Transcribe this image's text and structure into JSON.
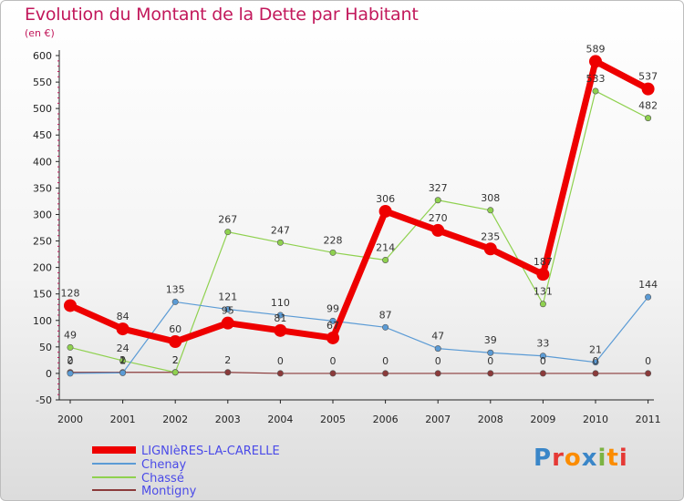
{
  "title": "Evolution du Montant de la Dette par Habitant",
  "unit": "(en €)",
  "logo": {
    "text": "Proxiti",
    "colors": [
      "#3a86c8",
      "#e53935",
      "#fb8c00",
      "#3a86c8",
      "#7cb342",
      "#fb8c00",
      "#e53935"
    ]
  },
  "chart_data": {
    "type": "line",
    "title": "Evolution du Montant de la Dette par Habitant",
    "ylabel": "(en €)",
    "xlabel": "",
    "ylim": [
      -50,
      600
    ],
    "yticks": [
      -50,
      0,
      50,
      100,
      150,
      200,
      250,
      300,
      350,
      400,
      450,
      500,
      550,
      600
    ],
    "x": [
      "2000",
      "2001",
      "2002",
      "2003",
      "2004",
      "2005",
      "2006",
      "2007",
      "2008",
      "2009",
      "2010",
      "2011"
    ],
    "grid": false,
    "legend": "bottom-left",
    "series": [
      {
        "name": "LIGNIèRES-LA-CARELLE",
        "color": "#ee0000",
        "width": 7,
        "values": [
          128,
          84,
          60,
          95,
          81,
          67,
          306,
          270,
          235,
          187,
          589,
          537
        ]
      },
      {
        "name": "Chenay",
        "color": "#5b9bd5",
        "width": 1.2,
        "values": [
          0,
          1,
          135,
          121,
          110,
          99,
          87,
          47,
          39,
          33,
          21,
          144
        ]
      },
      {
        "name": "Chassé",
        "color": "#8fd14f",
        "width": 1.2,
        "values": [
          49,
          24,
          2,
          267,
          247,
          228,
          214,
          327,
          308,
          131,
          533,
          482
        ]
      },
      {
        "name": "Montigny",
        "color": "#8b3a3a",
        "width": 1.2,
        "values": [
          2,
          2,
          2,
          2,
          0,
          0,
          0,
          0,
          0,
          0,
          0,
          0
        ]
      }
    ],
    "labels": [
      {
        "x": 0,
        "y": 128,
        "text": "128"
      },
      {
        "x": 1,
        "y": 84,
        "text": "84"
      },
      {
        "x": 2,
        "y": 60,
        "text": "60"
      },
      {
        "x": 3,
        "y": 95,
        "text": "95"
      },
      {
        "x": 4,
        "y": 81,
        "text": "81"
      },
      {
        "x": 5,
        "y": 67,
        "text": "67"
      },
      {
        "x": 6,
        "y": 306,
        "text": "306"
      },
      {
        "x": 7,
        "y": 270,
        "text": "270"
      },
      {
        "x": 8,
        "y": 235,
        "text": "235"
      },
      {
        "x": 9,
        "y": 187,
        "text": "187"
      },
      {
        "x": 10,
        "y": 589,
        "text": "589"
      },
      {
        "x": 11,
        "y": 537,
        "text": "537"
      },
      {
        "x": 0,
        "y": 0,
        "text": "0"
      },
      {
        "x": 1,
        "y": 1,
        "text": "1"
      },
      {
        "x": 2,
        "y": 135,
        "text": "135"
      },
      {
        "x": 3,
        "y": 121,
        "text": "121"
      },
      {
        "x": 4,
        "y": 110,
        "text": "110"
      },
      {
        "x": 5,
        "y": 99,
        "text": "99"
      },
      {
        "x": 6,
        "y": 87,
        "text": "87"
      },
      {
        "x": 7,
        "y": 47,
        "text": "47"
      },
      {
        "x": 8,
        "y": 39,
        "text": "39"
      },
      {
        "x": 9,
        "y": 33,
        "text": "33"
      },
      {
        "x": 10,
        "y": 21,
        "text": "21"
      },
      {
        "x": 11,
        "y": 144,
        "text": "144"
      },
      {
        "x": 0,
        "y": 49,
        "text": "49"
      },
      {
        "x": 1,
        "y": 24,
        "text": "24"
      },
      {
        "x": 2,
        "y": 2,
        "text": "2"
      },
      {
        "x": 3,
        "y": 267,
        "text": "267"
      },
      {
        "x": 4,
        "y": 247,
        "text": "247"
      },
      {
        "x": 5,
        "y": 228,
        "text": "228"
      },
      {
        "x": 6,
        "y": 214,
        "text": "214"
      },
      {
        "x": 7,
        "y": 327,
        "text": "327"
      },
      {
        "x": 8,
        "y": 308,
        "text": "308"
      },
      {
        "x": 9,
        "y": 131,
        "text": "131"
      },
      {
        "x": 10,
        "y": 533,
        "text": "533"
      },
      {
        "x": 11,
        "y": 482,
        "text": "482"
      },
      {
        "x": 0,
        "y": 2,
        "text": "2"
      },
      {
        "x": 1,
        "y": 2,
        "text": "2"
      },
      {
        "x": 2,
        "y": 2,
        "text": "2"
      },
      {
        "x": 3,
        "y": 2,
        "text": "2"
      },
      {
        "x": 4,
        "y": 0,
        "text": "0"
      },
      {
        "x": 5,
        "y": 0,
        "text": "0"
      },
      {
        "x": 6,
        "y": 0,
        "text": "0"
      },
      {
        "x": 7,
        "y": 0,
        "text": "0"
      },
      {
        "x": 8,
        "y": 0,
        "text": "0"
      },
      {
        "x": 9,
        "y": 0,
        "text": "0"
      },
      {
        "x": 10,
        "y": 0,
        "text": "0"
      },
      {
        "x": 11,
        "y": 0,
        "text": "0"
      }
    ]
  }
}
